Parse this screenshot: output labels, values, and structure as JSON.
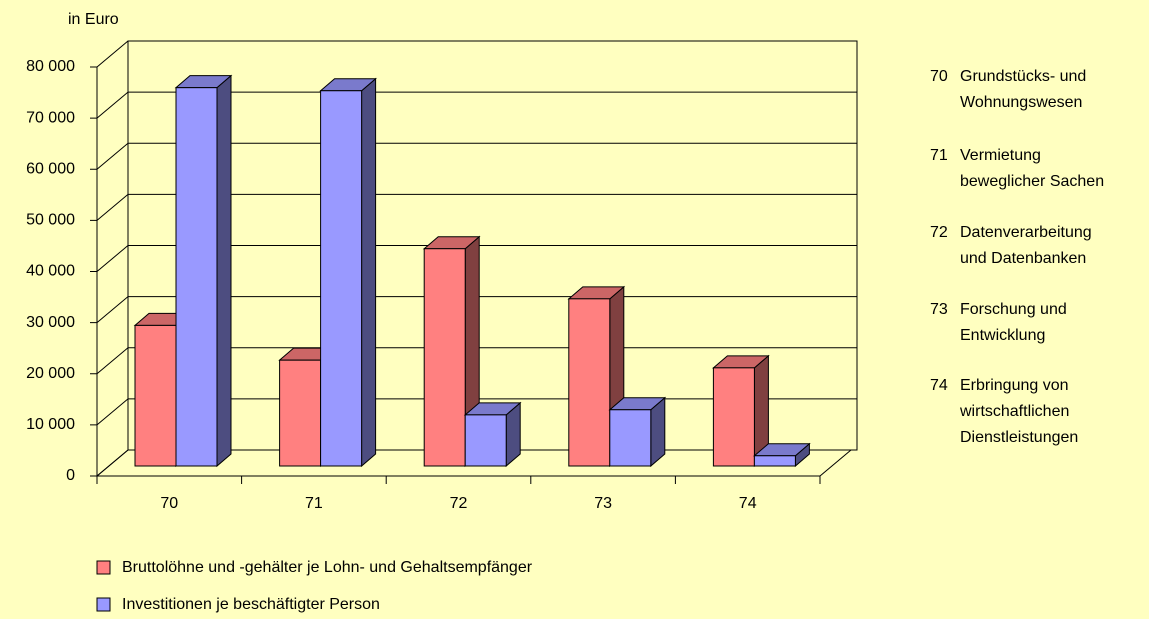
{
  "chart_data": {
    "type": "bar3d",
    "y_axis_label": "in Euro",
    "categories": [
      "70",
      "71",
      "72",
      "73",
      "74"
    ],
    "series": [
      {
        "name": "Bruttolöhne und -gehälter je Lohn- und Gehaltsempfänger",
        "color": "#FF8080",
        "values": [
          27500,
          20700,
          42500,
          32700,
          19200
        ]
      },
      {
        "name": "Investitionen je beschäftigter Person",
        "color": "#9999FF",
        "values": [
          74000,
          73400,
          10000,
          11000,
          2000
        ]
      }
    ],
    "ylim": [
      0,
      80000
    ],
    "yticks": [
      {
        "value": 0,
        "label": "0"
      },
      {
        "value": 10000,
        "label": "10 000"
      },
      {
        "value": 20000,
        "label": "20 000"
      },
      {
        "value": 30000,
        "label": "30 000"
      },
      {
        "value": 40000,
        "label": "40 000"
      },
      {
        "value": 50000,
        "label": "50 000"
      },
      {
        "value": 60000,
        "label": "60 000"
      },
      {
        "value": 70000,
        "label": "70 000"
      },
      {
        "value": 80000,
        "label": "80 000"
      }
    ],
    "grid": true,
    "category_notes": [
      {
        "code": "70",
        "lines": [
          "Grundstücks- und",
          "Wohnungswesen"
        ]
      },
      {
        "code": "71",
        "lines": [
          "Vermietung",
          "beweglicher Sachen"
        ]
      },
      {
        "code": "72",
        "lines": [
          "Datenverarbeitung",
          "und Datenbanken"
        ]
      },
      {
        "code": "73",
        "lines": [
          "Forschung und",
          "Entwicklung"
        ]
      },
      {
        "code": "74",
        "lines": [
          "Erbringung von",
          "wirtschaftlichen",
          "Dienstleistungen"
        ]
      }
    ]
  }
}
